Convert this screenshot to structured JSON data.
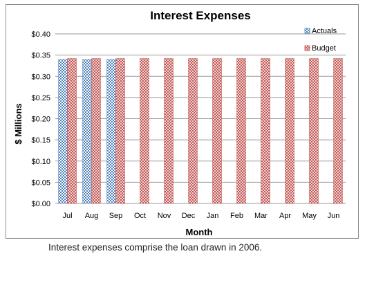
{
  "chart_data": {
    "type": "bar",
    "title": "Interest Expenses",
    "xlabel": "Month",
    "ylabel": "$ Millions",
    "categories": [
      "Jul",
      "Aug",
      "Sep",
      "Oct",
      "Nov",
      "Dec",
      "Jan",
      "Feb",
      "Mar",
      "Apr",
      "May",
      "Jun"
    ],
    "series": [
      {
        "name": "Actuals",
        "values": [
          0.34,
          0.34,
          0.34,
          null,
          null,
          null,
          null,
          null,
          null,
          null,
          null,
          null
        ],
        "color": "#4f81bd",
        "pattern": "checker"
      },
      {
        "name": "Budget",
        "values": [
          0.342,
          0.342,
          0.342,
          0.342,
          0.342,
          0.342,
          0.342,
          0.342,
          0.342,
          0.342,
          0.342,
          0.342
        ],
        "color": "#c0504d",
        "pattern": "diagonal-cross"
      }
    ],
    "ylim": [
      0,
      0.4
    ],
    "yticks": [
      0.0,
      0.05,
      0.1,
      0.15,
      0.2,
      0.25,
      0.3,
      0.35,
      0.4
    ],
    "ytick_labels": [
      "$0.00",
      "$0.05",
      "$0.10",
      "$0.15",
      "$0.20",
      "$0.25",
      "$0.30",
      "$0.35",
      "$0.40"
    ],
    "grid": true,
    "legend_position": "top-right"
  },
  "caption": "Interest expenses comprise the loan drawn in 2006."
}
